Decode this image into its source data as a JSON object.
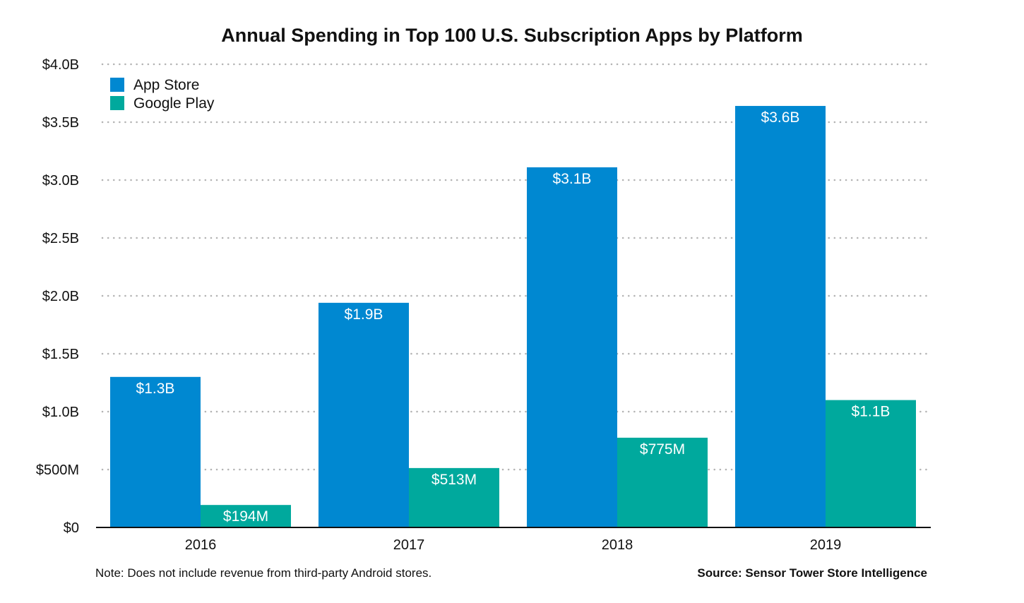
{
  "chart_data": {
    "type": "bar",
    "title": "Annual Spending in Top 100 U.S. Subscription Apps by Platform",
    "categories": [
      "2016",
      "2017",
      "2018",
      "2019"
    ],
    "series": [
      {
        "name": "App Store",
        "color": "#0088d1",
        "values": [
          1.3,
          1.94,
          3.11,
          3.64
        ],
        "labels": [
          "$1.3B",
          "$1.9B",
          "$3.1B",
          "$3.6B"
        ]
      },
      {
        "name": "Google Play",
        "color": "#00a99d",
        "values": [
          0.194,
          0.513,
          0.775,
          1.1
        ],
        "labels": [
          "$194M",
          "$513M",
          "$775M",
          "$1.1B"
        ]
      }
    ],
    "ylim": [
      0,
      4.0
    ],
    "yticks": [
      {
        "value": 0,
        "label": "$0"
      },
      {
        "value": 0.5,
        "label": "$500M"
      },
      {
        "value": 1.0,
        "label": "$1.0B"
      },
      {
        "value": 1.5,
        "label": "$1.5B"
      },
      {
        "value": 2.0,
        "label": "$2.0B"
      },
      {
        "value": 2.5,
        "label": "$2.5B"
      },
      {
        "value": 3.0,
        "label": "$3.0B"
      },
      {
        "value": 3.5,
        "label": "$3.5B"
      },
      {
        "value": 4.0,
        "label": "$4.0B"
      }
    ],
    "xlabel": "",
    "ylabel": "",
    "grid": true,
    "legend_position": "top-left"
  },
  "footer": {
    "note": "Note: Does not include revenue from third-party Android stores.",
    "source": "Source: Sensor Tower Store Intelligence"
  }
}
